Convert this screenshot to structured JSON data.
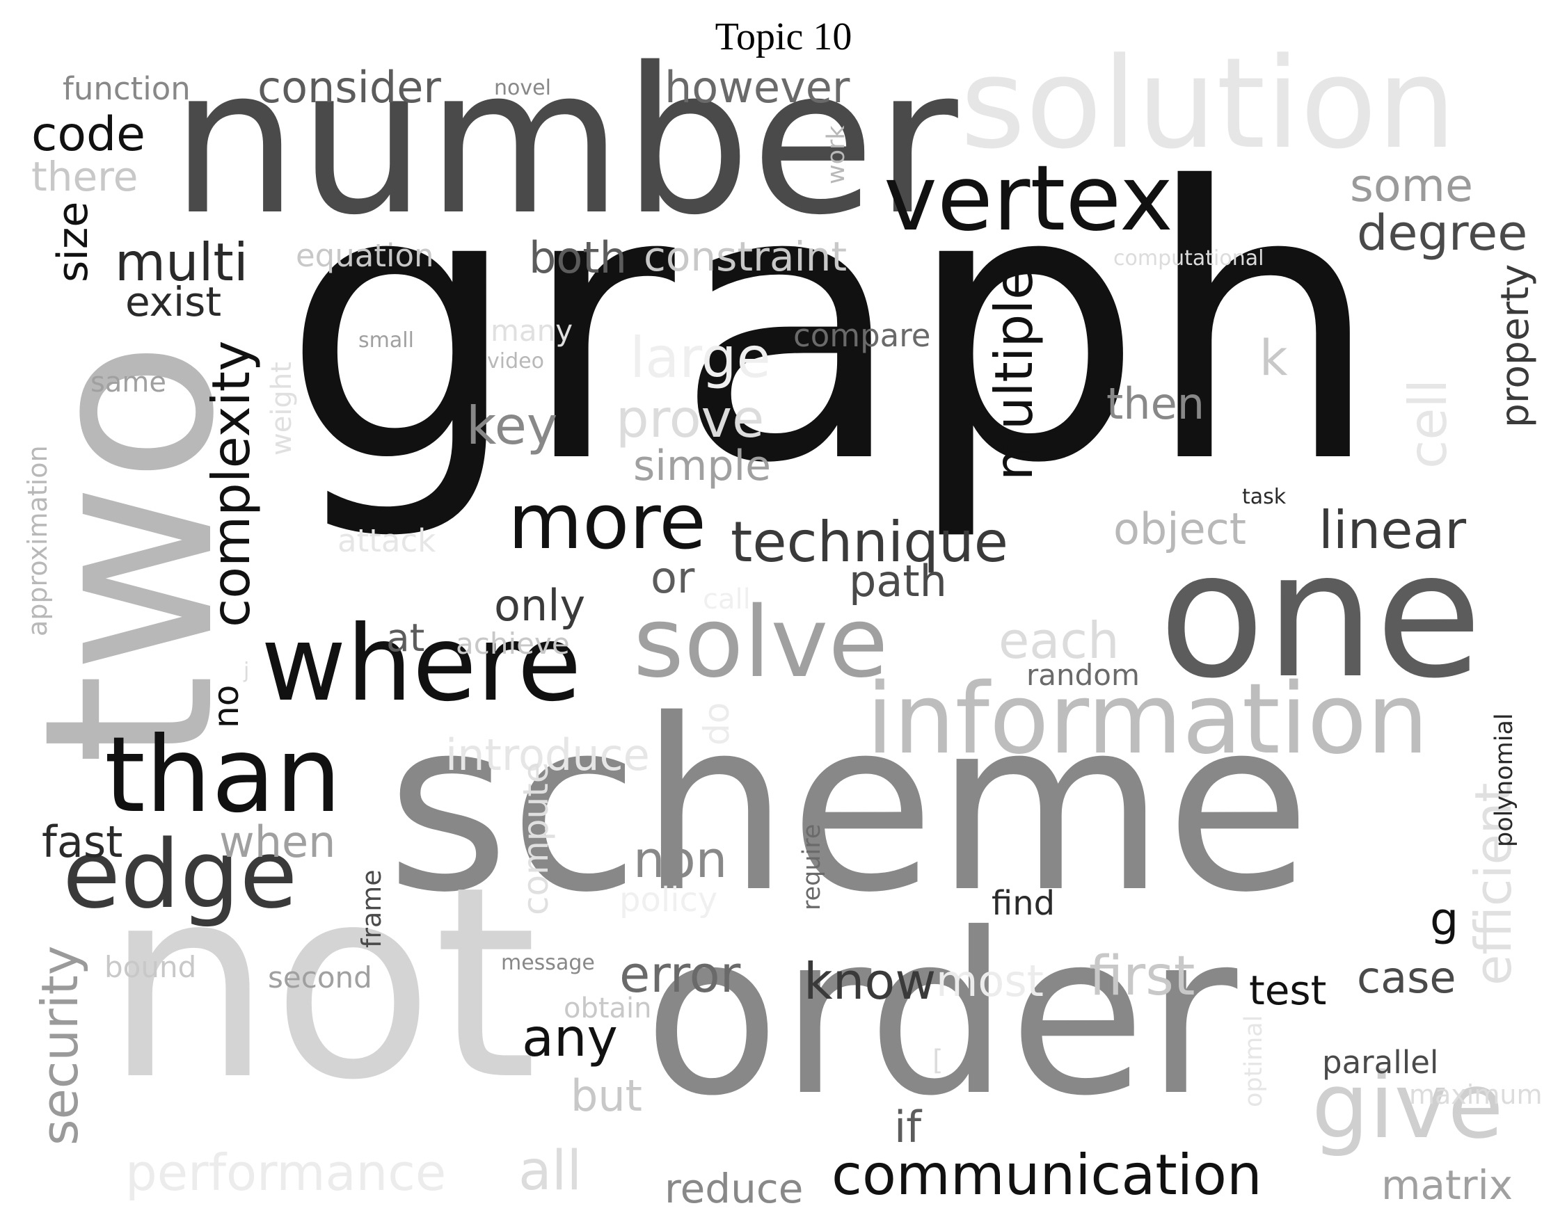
{
  "title": "Topic 10",
  "words": [
    {
      "text": "graph",
      "shade": "#111111"
    },
    {
      "text": "number",
      "shade": "#4a4a4a"
    },
    {
      "text": "scheme",
      "shade": "#888888"
    },
    {
      "text": "not",
      "shade": "#d4d4d4"
    },
    {
      "text": "order",
      "shade": "#888888"
    },
    {
      "text": "two",
      "shade": "#b8b8b8"
    },
    {
      "text": "one",
      "shade": "#5c5c5c"
    },
    {
      "text": "solution",
      "shade": "#e6e6e6"
    },
    {
      "text": "vertex",
      "shade": "#111111"
    },
    {
      "text": "where",
      "shade": "#111111"
    },
    {
      "text": "information",
      "shade": "#bdbdbd"
    },
    {
      "text": "than",
      "shade": "#111111"
    },
    {
      "text": "edge",
      "shade": "#3a3a3a"
    },
    {
      "text": "solve",
      "shade": "#a0a0a0"
    },
    {
      "text": "more",
      "shade": "#111111"
    },
    {
      "text": "technique",
      "shade": "#3a3a3a"
    },
    {
      "text": "give",
      "shade": "#cfcfcf"
    },
    {
      "text": "communication",
      "shade": "#111111"
    },
    {
      "text": "performance",
      "shade": "#ececec"
    },
    {
      "text": "security",
      "shade": "#9a9a9a"
    },
    {
      "text": "complexity",
      "shade": "#111111"
    },
    {
      "text": "multiple",
      "shade": "#111111"
    },
    {
      "text": "efficient",
      "shade": "#e0e0e0"
    },
    {
      "text": "first",
      "shade": "#c8c8c8"
    },
    {
      "text": "degree",
      "shade": "#4a4a4a"
    },
    {
      "text": "linear",
      "shade": "#3a3a3a"
    },
    {
      "text": "multi",
      "shade": "#2a2a2a"
    },
    {
      "text": "code",
      "shade": "#111111"
    },
    {
      "text": "consider",
      "shade": "#5c5c5c"
    },
    {
      "text": "however",
      "shade": "#6a6a6a"
    },
    {
      "text": "some",
      "shade": "#9a9a9a"
    },
    {
      "text": "property",
      "shade": "#3a3a3a"
    },
    {
      "text": "size",
      "shade": "#111111"
    },
    {
      "text": "prove",
      "shade": "#dcdcdc"
    },
    {
      "text": "large",
      "shade": "#efefef"
    },
    {
      "text": "key",
      "shade": "#888888"
    },
    {
      "text": "simple",
      "shade": "#a0a0a0"
    },
    {
      "text": "object",
      "shade": "#b8b8b8"
    },
    {
      "text": "path",
      "shade": "#4a4a4a"
    },
    {
      "text": "only",
      "shade": "#3a3a3a"
    },
    {
      "text": "or",
      "shade": "#5c5c5c"
    },
    {
      "text": "each",
      "shade": "#dcdcdc"
    },
    {
      "text": "introduce",
      "shade": "#e6e6e6"
    },
    {
      "text": "non",
      "shade": "#888888"
    },
    {
      "text": "error",
      "shade": "#6a6a6a"
    },
    {
      "text": "know",
      "shade": "#3a3a3a"
    },
    {
      "text": "most",
      "shade": "#ececec"
    },
    {
      "text": "test",
      "shade": "#111111"
    },
    {
      "text": "case",
      "shade": "#4a4a4a"
    },
    {
      "text": "any",
      "shade": "#111111"
    },
    {
      "text": "all",
      "shade": "#dcdcdc"
    },
    {
      "text": "reduce",
      "shade": "#888888"
    },
    {
      "text": "matrix",
      "shade": "#a0a0a0"
    },
    {
      "text": "fast",
      "shade": "#2a2a2a"
    },
    {
      "text": "when",
      "shade": "#a0a0a0"
    },
    {
      "text": "compute",
      "shade": "#e0e0e0"
    },
    {
      "text": "but",
      "shade": "#c8c8c8"
    },
    {
      "text": "if",
      "shade": "#5c5c5c"
    },
    {
      "text": "then",
      "shade": "#888888"
    },
    {
      "text": "cell",
      "shade": "#e6e6e6"
    },
    {
      "text": "k",
      "shade": "#c8c8c8"
    },
    {
      "text": "both",
      "shade": "#5c5c5c"
    },
    {
      "text": "constraint",
      "shade": "#c8c8c8"
    },
    {
      "text": "exist",
      "shade": "#2a2a2a"
    },
    {
      "text": "there",
      "shade": "#c8c8c8"
    },
    {
      "text": "function",
      "shade": "#888888"
    },
    {
      "text": "equation",
      "shade": "#c8c8c8"
    },
    {
      "text": "compare",
      "shade": "#6a6a6a"
    },
    {
      "text": "approximation",
      "shade": "#b8b8b8"
    },
    {
      "text": "weight",
      "shade": "#e0e0e0"
    },
    {
      "text": "same",
      "shade": "#a0a0a0"
    },
    {
      "text": "attack",
      "shade": "#e6e6e6"
    },
    {
      "text": "at",
      "shade": "#5c5c5c"
    },
    {
      "text": "achieve",
      "shade": "#c8c8c8"
    },
    {
      "text": "random",
      "shade": "#6a6a6a"
    },
    {
      "text": "no",
      "shade": "#111111"
    },
    {
      "text": "polynomial",
      "shade": "#2a2a2a"
    },
    {
      "text": "g",
      "shade": "#111111"
    },
    {
      "text": "parallel",
      "shade": "#4a4a4a"
    },
    {
      "text": "maximum",
      "shade": "#dcdcdc"
    },
    {
      "text": "optimal",
      "shade": "#e6e6e6"
    },
    {
      "text": "find",
      "shade": "#2a2a2a"
    },
    {
      "text": "require",
      "shade": "#6a6a6a"
    },
    {
      "text": "frame",
      "shade": "#4a4a4a"
    },
    {
      "text": "bound",
      "shade": "#c8c8c8"
    },
    {
      "text": "second",
      "shade": "#a0a0a0"
    },
    {
      "text": "obtain",
      "shade": "#c8c8c8"
    },
    {
      "text": "message",
      "shade": "#888888"
    },
    {
      "text": "policy",
      "shade": "#f0f0f0"
    },
    {
      "text": "do",
      "shade": "#ececec"
    },
    {
      "text": "work",
      "shade": "#b8b8b8"
    },
    {
      "text": "novel",
      "shade": "#888888"
    },
    {
      "text": "many",
      "shade": "#e0e0e0"
    },
    {
      "text": "small",
      "shade": "#a0a0a0"
    },
    {
      "text": "video",
      "shade": "#b8b8b8"
    },
    {
      "text": "computational",
      "shade": "#dcdcdc"
    },
    {
      "text": "task",
      "shade": "#2a2a2a"
    },
    {
      "text": "call",
      "shade": "#f0f0f0"
    },
    {
      "text": "j",
      "shade": "#dcdcdc"
    },
    {
      "text": "[",
      "shade": "#dcdcdc"
    }
  ]
}
